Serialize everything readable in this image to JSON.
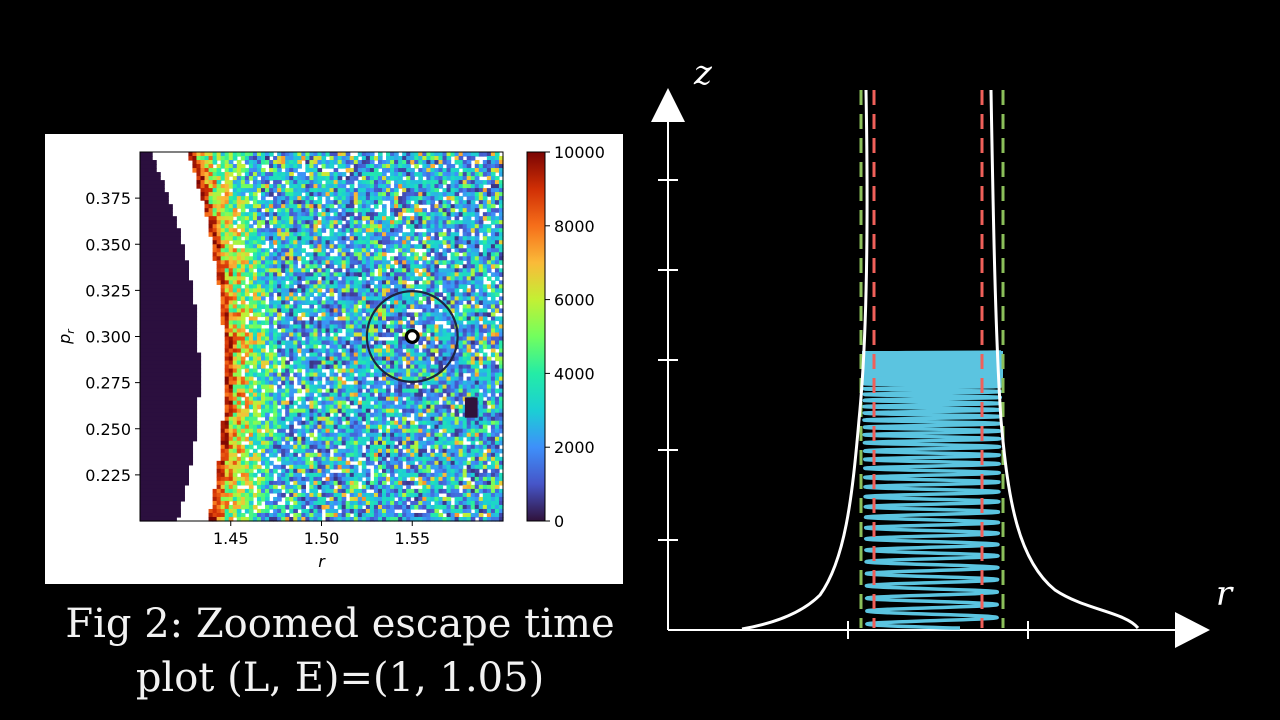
{
  "caption": {
    "line1": "Fig 2: Zoomed escape time",
    "line2": "plot (L, E)=(1, 1.05)"
  },
  "chart_data": [
    {
      "type": "heatmap",
      "title": "",
      "xlabel": "r",
      "ylabel": "p_r",
      "xlim": [
        1.4,
        1.6
      ],
      "ylim": [
        0.2,
        0.4
      ],
      "x_ticks": [
        "1.45",
        "1.50",
        "1.55"
      ],
      "y_ticks": [
        "0.225",
        "0.250",
        "0.275",
        "0.300",
        "0.325",
        "0.350",
        "0.375"
      ],
      "colorbar": {
        "range": [
          0,
          10000
        ],
        "ticks": [
          "0",
          "2000",
          "4000",
          "6000",
          "8000",
          "10000"
        ],
        "colormap": "turbo"
      },
      "marker": {
        "x": 1.55,
        "y": 0.3,
        "circle_radius": 0.025
      },
      "colors": {
        "bound_region": "#2b0f3e",
        "unfilled": "#ffffff"
      }
    },
    {
      "type": "line",
      "xlabel": "r",
      "ylabel": "z",
      "series": [],
      "colors": {
        "potential_walls": "#ffffff",
        "inner_dashed": "#f0605a",
        "outer_dashed": "#8bbf5a",
        "trajectory": "#5bc4e0"
      }
    }
  ]
}
